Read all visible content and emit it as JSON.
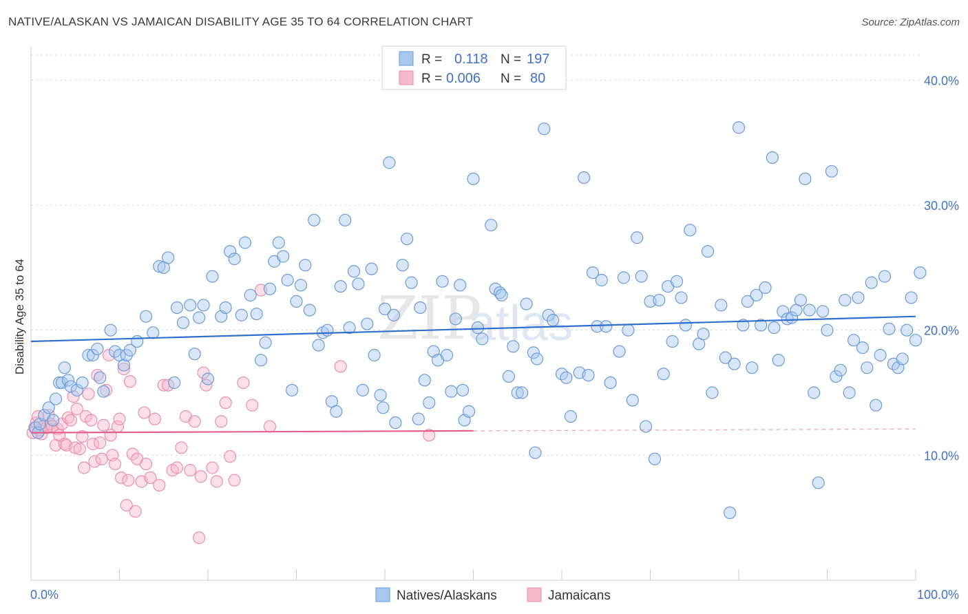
{
  "title": "NATIVE/ALASKAN VS JAMAICAN DISABILITY AGE 35 TO 64 CORRELATION CHART",
  "source": "Source: ZipAtlas.com",
  "watermark": {
    "zip": "ZIP",
    "atlas": "atlas"
  },
  "colors": {
    "blue_fill": "#a9c7ee",
    "blue_stroke": "#6b9bd8",
    "blue_line": "#2f6fce",
    "pink_fill": "#f6b9cb",
    "pink_stroke": "#ea8fab",
    "pink_line": "#e4608c",
    "accent_text": "#3f72c6",
    "grid": "#d9d9d9"
  },
  "legend": {
    "rows": [
      {
        "r_label": "R =",
        "r_value": "0.118",
        "n_label": "N =",
        "n_value": "197",
        "color": "blue"
      },
      {
        "r_label": "R =",
        "r_value": "0.006",
        "n_label": "N =",
        "n_value": "80",
        "color": "pink"
      }
    ]
  },
  "bottom_legend": [
    "Natives/Alaskans",
    "Jamaicans"
  ],
  "chart_data": {
    "type": "scatter",
    "title": "NATIVE/ALASKAN VS JAMAICAN DISABILITY AGE 35 TO 64 CORRELATION CHART",
    "xlabel": "",
    "ylabel": "Disability Age 35 to 64",
    "xlim": [
      0,
      100
    ],
    "ylim": [
      0,
      42
    ],
    "x_tick_labels": [
      "0.0%",
      "100.0%"
    ],
    "y_ticks": [
      10,
      20,
      30,
      40
    ],
    "y_tick_labels": [
      "10.0%",
      "20.0%",
      "30.0%",
      "40.0%"
    ],
    "grid": "horizontal dashed",
    "legend_placement": "top-center",
    "series": [
      {
        "name": "Natives/Alaskans",
        "color": "blue",
        "trend": {
          "x": [
            0,
            100
          ],
          "y": [
            19.1,
            21.1
          ],
          "dashed_from": null
        },
        "points": [
          [
            0.5,
            12.2
          ],
          [
            0.8,
            11.8
          ],
          [
            1,
            12.5
          ],
          [
            1.5,
            13.2
          ],
          [
            2,
            13.8
          ],
          [
            2.5,
            12.8
          ],
          [
            2.8,
            14.5
          ],
          [
            3.2,
            15.8
          ],
          [
            3.5,
            15.8
          ],
          [
            3.8,
            17
          ],
          [
            4.2,
            16
          ],
          [
            4.5,
            15.5
          ],
          [
            5.2,
            15.2
          ],
          [
            5.8,
            15.8
          ],
          [
            6.5,
            18
          ],
          [
            7,
            18
          ],
          [
            7.5,
            18.5
          ],
          [
            7.8,
            16.2
          ],
          [
            8.2,
            15.1
          ],
          [
            9,
            20
          ],
          [
            9.5,
            18.3
          ],
          [
            10,
            18
          ],
          [
            10.5,
            17.2
          ],
          [
            10.8,
            18
          ],
          [
            11.2,
            18.4
          ],
          [
            12,
            19.1
          ],
          [
            13,
            21.1
          ],
          [
            13.8,
            19.8
          ],
          [
            14.5,
            25.1
          ],
          [
            15,
            25
          ],
          [
            15.5,
            25.8
          ],
          [
            16.2,
            15.8
          ],
          [
            16.5,
            21.8
          ],
          [
            17.2,
            20.6
          ],
          [
            18,
            22
          ],
          [
            18.5,
            18.1
          ],
          [
            19,
            21
          ],
          [
            19.5,
            22
          ],
          [
            20,
            16.1
          ],
          [
            20.5,
            24.3
          ],
          [
            21.5,
            21.1
          ],
          [
            22,
            21.8
          ],
          [
            22.5,
            26.3
          ],
          [
            23,
            25.7
          ],
          [
            23.8,
            21.2
          ],
          [
            24.2,
            27
          ],
          [
            24.8,
            22.8
          ],
          [
            25.5,
            21.3
          ],
          [
            26,
            17.6
          ],
          [
            26.5,
            19
          ],
          [
            27,
            23.3
          ],
          [
            27.5,
            25.5
          ],
          [
            28,
            27
          ],
          [
            28.5,
            25.9
          ],
          [
            29,
            24
          ],
          [
            29.5,
            15.2
          ],
          [
            30,
            22.3
          ],
          [
            30.5,
            23.6
          ],
          [
            31,
            25.2
          ],
          [
            31.5,
            21.6
          ],
          [
            32,
            28.8
          ],
          [
            32.5,
            18.8
          ],
          [
            33,
            19.8
          ],
          [
            33.5,
            20
          ],
          [
            34,
            14.3
          ],
          [
            34.5,
            13.5
          ],
          [
            35,
            23.5
          ],
          [
            35.5,
            28.8
          ],
          [
            36,
            20.2
          ],
          [
            36.5,
            24.7
          ],
          [
            37,
            23.7
          ],
          [
            37.5,
            15.2
          ],
          [
            38,
            20.5
          ],
          [
            38.5,
            24.9
          ],
          [
            38.8,
            18
          ],
          [
            39.5,
            14.8
          ],
          [
            39.8,
            13.8
          ],
          [
            40,
            21.7
          ],
          [
            40.5,
            33.4
          ],
          [
            41,
            21.2
          ],
          [
            41.2,
            12.6
          ],
          [
            42,
            25.2
          ],
          [
            42.5,
            27.3
          ],
          [
            43,
            23.8
          ],
          [
            43.8,
            12.9
          ],
          [
            44,
            21.8
          ],
          [
            44.5,
            16
          ],
          [
            45,
            14.2
          ],
          [
            45.5,
            18.3
          ],
          [
            46,
            17.6
          ],
          [
            46.5,
            23.9
          ],
          [
            47,
            18
          ],
          [
            47.5,
            15.1
          ],
          [
            48,
            20.9
          ],
          [
            48.5,
            23.6
          ],
          [
            48.8,
            15.2
          ],
          [
            49,
            12.8
          ],
          [
            49.5,
            13.5
          ],
          [
            50,
            32.1
          ],
          [
            50.5,
            20.2
          ],
          [
            51,
            19.3
          ],
          [
            52,
            28.4
          ],
          [
            52.5,
            23.3
          ],
          [
            53,
            23
          ],
          [
            53.2,
            22.8
          ],
          [
            54,
            16.3
          ],
          [
            54.5,
            18.7
          ],
          [
            55,
            15
          ],
          [
            55.5,
            15
          ],
          [
            56,
            22.1
          ],
          [
            56.8,
            18.2
          ],
          [
            57,
            10.2
          ],
          [
            57.2,
            17.7
          ],
          [
            58,
            36.1
          ],
          [
            58.5,
            21.2
          ],
          [
            59,
            20.8
          ],
          [
            60,
            16.5
          ],
          [
            60.5,
            16.2
          ],
          [
            61,
            13.1
          ],
          [
            62,
            16.6
          ],
          [
            62.5,
            32.2
          ],
          [
            63,
            16.4
          ],
          [
            63.5,
            24.6
          ],
          [
            64,
            20.3
          ],
          [
            64.5,
            24
          ],
          [
            65,
            20.3
          ],
          [
            65.5,
            15.8
          ],
          [
            66.5,
            18.3
          ],
          [
            67,
            24.2
          ],
          [
            67.5,
            20
          ],
          [
            68,
            14.4
          ],
          [
            68.5,
            27.4
          ],
          [
            69,
            24.3
          ],
          [
            69.5,
            12.3
          ],
          [
            70,
            22.3
          ],
          [
            70.5,
            9.7
          ],
          [
            71,
            22.4
          ],
          [
            71.5,
            16.5
          ],
          [
            72,
            23.5
          ],
          [
            72.5,
            19.1
          ],
          [
            73,
            23.9
          ],
          [
            73.5,
            22.6
          ],
          [
            74,
            20.4
          ],
          [
            74.5,
            28
          ],
          [
            75.5,
            18.9
          ],
          [
            76,
            19.7
          ],
          [
            76.5,
            26.3
          ],
          [
            77,
            15
          ],
          [
            78,
            22
          ],
          [
            78.5,
            17.8
          ],
          [
            79,
            5.4
          ],
          [
            79.5,
            17.3
          ],
          [
            80,
            36.2
          ],
          [
            80.5,
            20.4
          ],
          [
            81,
            22.3
          ],
          [
            81.5,
            17
          ],
          [
            82,
            22.8
          ],
          [
            82.5,
            20.4
          ],
          [
            83,
            23.4
          ],
          [
            83.8,
            33.8
          ],
          [
            84,
            20.2
          ],
          [
            84.5,
            17.6
          ],
          [
            85,
            21.5
          ],
          [
            85.5,
            20.9
          ],
          [
            86,
            21
          ],
          [
            86.5,
            21.6
          ],
          [
            87,
            22.4
          ],
          [
            87.5,
            32.1
          ],
          [
            88,
            21.6
          ],
          [
            88.5,
            15
          ],
          [
            89,
            7.8
          ],
          [
            89.5,
            21.5
          ],
          [
            90,
            20
          ],
          [
            90.5,
            32.7
          ],
          [
            91,
            16.3
          ],
          [
            91.5,
            16.8
          ],
          [
            92,
            22.4
          ],
          [
            92.5,
            15
          ],
          [
            93,
            19.2
          ],
          [
            93.5,
            22.6
          ],
          [
            94,
            18.6
          ],
          [
            94.5,
            17
          ],
          [
            95,
            23.8
          ],
          [
            95.5,
            14
          ],
          [
            96,
            18
          ],
          [
            96.5,
            24.3
          ],
          [
            97,
            20.1
          ],
          [
            97.5,
            17.3
          ],
          [
            98,
            17
          ],
          [
            98.5,
            17.7
          ],
          [
            99,
            20
          ],
          [
            99.5,
            22.6
          ],
          [
            100,
            19.2
          ],
          [
            100.5,
            24.6
          ]
        ]
      },
      {
        "name": "Jamaicans",
        "color": "pink",
        "trend": {
          "x": [
            0,
            100
          ],
          "y": [
            11.8,
            12.1
          ],
          "dashed_from": 50
        },
        "points": [
          [
            0.2,
            11.8
          ],
          [
            0.4,
            12.2
          ],
          [
            0.6,
            12.6
          ],
          [
            0.8,
            13.1
          ],
          [
            1,
            12
          ],
          [
            1.2,
            11.7
          ],
          [
            1.5,
            12.4
          ],
          [
            1.8,
            12.2
          ],
          [
            2,
            13.2
          ],
          [
            2.2,
            12.5
          ],
          [
            2.4,
            12.3
          ],
          [
            2.8,
            10.8
          ],
          [
            3,
            12.1
          ],
          [
            3.2,
            11.6
          ],
          [
            3.5,
            12.5
          ],
          [
            3.8,
            10.9
          ],
          [
            4,
            10.8
          ],
          [
            4.2,
            13
          ],
          [
            4.5,
            12.8
          ],
          [
            4.8,
            14.7
          ],
          [
            5,
            10.6
          ],
          [
            5.2,
            13.7
          ],
          [
            5.5,
            10.5
          ],
          [
            5.8,
            11.5
          ],
          [
            6,
            9
          ],
          [
            6.2,
            13.1
          ],
          [
            6.5,
            14.9
          ],
          [
            6.8,
            12.8
          ],
          [
            7,
            10.9
          ],
          [
            7.2,
            9.5
          ],
          [
            7.5,
            16.4
          ],
          [
            7.8,
            11
          ],
          [
            8,
            9.7
          ],
          [
            8.2,
            12.4
          ],
          [
            8.5,
            15.2
          ],
          [
            8.8,
            18
          ],
          [
            9,
            11.6
          ],
          [
            9.2,
            10
          ],
          [
            9.5,
            9.3
          ],
          [
            9.8,
            12.3
          ],
          [
            10,
            12.9
          ],
          [
            10.2,
            8.2
          ],
          [
            10.5,
            16.9
          ],
          [
            10.8,
            6
          ],
          [
            11,
            8
          ],
          [
            11.2,
            15.9
          ],
          [
            11.5,
            10.1
          ],
          [
            11.8,
            5.5
          ],
          [
            12,
            9.7
          ],
          [
            12.5,
            7.9
          ],
          [
            12.8,
            13.4
          ],
          [
            13,
            9.3
          ],
          [
            13.5,
            8.2
          ],
          [
            14,
            12.9
          ],
          [
            14.5,
            7.6
          ],
          [
            15,
            15.6
          ],
          [
            15.5,
            15.6
          ],
          [
            16,
            8.8
          ],
          [
            16.5,
            9
          ],
          [
            17,
            10.6
          ],
          [
            17.5,
            13.1
          ],
          [
            18,
            8.8
          ],
          [
            18.5,
            12.7
          ],
          [
            19,
            3.4
          ],
          [
            19.2,
            8.3
          ],
          [
            19.5,
            16.6
          ],
          [
            19.8,
            15.6
          ],
          [
            20.5,
            9
          ],
          [
            21,
            7.9
          ],
          [
            21.5,
            12.7
          ],
          [
            22,
            14.2
          ],
          [
            22.5,
            9.9
          ],
          [
            23,
            8
          ],
          [
            24,
            15.8
          ],
          [
            25,
            14
          ],
          [
            26,
            23.2
          ],
          [
            27,
            12.3
          ],
          [
            35,
            17.1
          ],
          [
            45,
            11.6
          ]
        ]
      }
    ]
  }
}
